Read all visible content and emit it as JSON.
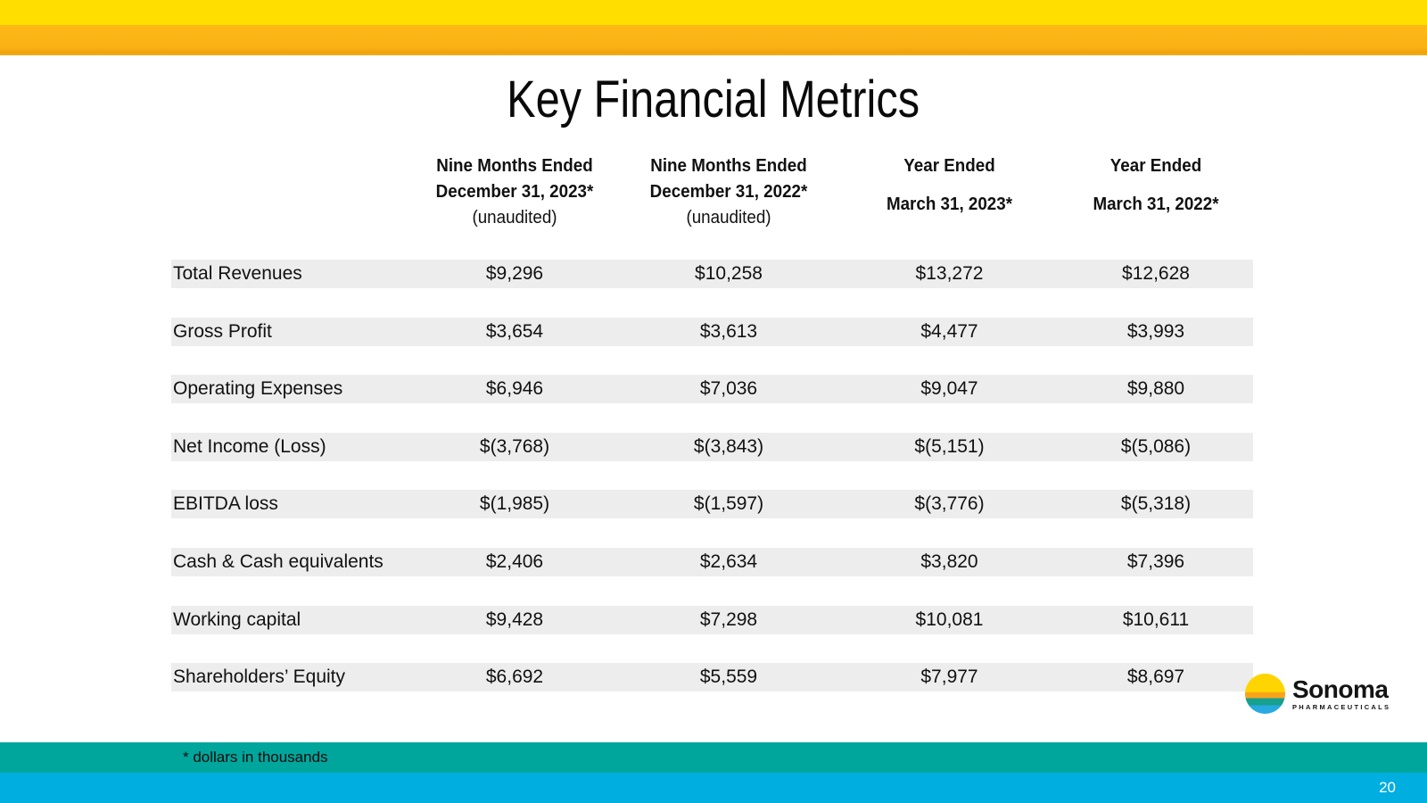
{
  "slide": {
    "title": "Key Financial Metrics",
    "footnote": "* dollars in thousands",
    "page_number": "20"
  },
  "table": {
    "columns": [
      {
        "line1": "Nine Months Ended",
        "line2": "December 31, 2023*",
        "line3": "(unaudited)"
      },
      {
        "line1": "Nine Months Ended",
        "line2": "December 31, 2022*",
        "line3": "(unaudited)"
      },
      {
        "line1": "Year Ended",
        "line2": "March 31, 2023*",
        "line3": ""
      },
      {
        "line1": "Year Ended",
        "line2": "March 31, 2022*",
        "line3": ""
      }
    ],
    "rows": [
      {
        "label": "Total Revenues",
        "values": [
          "$9,296",
          "$10,258",
          "$13,272",
          "$12,628"
        ]
      },
      {
        "label": "Gross Profit",
        "values": [
          "$3,654",
          "$3,613",
          "$4,477",
          "$3,993"
        ]
      },
      {
        "label": "Operating Expenses",
        "values": [
          "$6,946",
          "$7,036",
          "$9,047",
          "$9,880"
        ]
      },
      {
        "label": "Net Income (Loss)",
        "values": [
          "$(3,768)",
          "$(3,843)",
          "$(5,151)",
          "$(5,086)"
        ]
      },
      {
        "label": "EBITDA loss",
        "values": [
          "$(1,985)",
          "$(1,597)",
          "$(3,776)",
          "$(5,318)"
        ]
      },
      {
        "label": "Cash & Cash equivalents",
        "values": [
          "$2,406",
          "$2,634",
          "$3,820",
          "$7,396"
        ]
      },
      {
        "label": "Working capital",
        "values": [
          "$9,428",
          "$7,298",
          "$10,081",
          "$10,611"
        ]
      },
      {
        "label": "Shareholders’ Equity",
        "values": [
          "$6,692",
          "$5,559",
          "$7,977",
          "$8,697"
        ]
      }
    ]
  },
  "logo": {
    "name": "Sonoma",
    "subtext": "PHARMACEUTICALS"
  },
  "colors": {
    "top_bar_yellow": "#FFDE00",
    "top_bar_orange": "#FBB416",
    "footnote_bar_teal": "#00A69C",
    "footer_bar_blue": "#00AEE0",
    "row_shade": "#EDEDED",
    "logo_yellow": "#FFD400",
    "logo_orange": "#F7A31B",
    "logo_teal": "#16A08F",
    "logo_blue": "#27AADF"
  }
}
